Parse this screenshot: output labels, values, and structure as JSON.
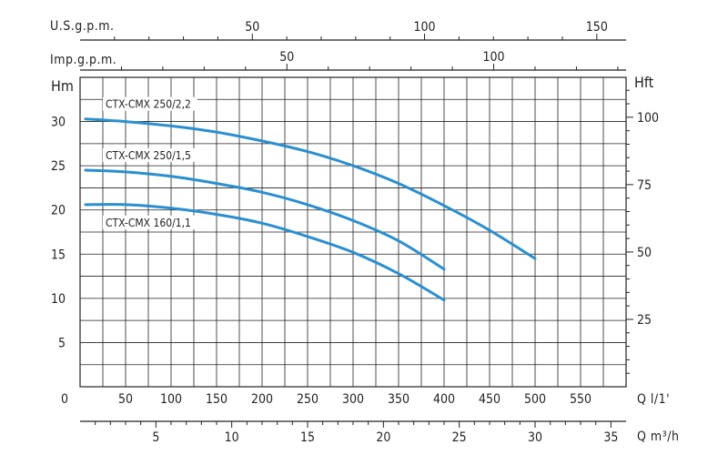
{
  "chart_data": {
    "type": "line",
    "title": "",
    "units": {
      "us_gpm": "U.S.g.p.m.",
      "imp_gpm": "Imp.g.p.m.",
      "head_m": "Hm",
      "head_ft": "Hft",
      "flow_lmin": "Q l/1'",
      "flow_m3h": "Q m³/h"
    },
    "axes": {
      "flow_lmin": {
        "range": [
          0,
          600
        ],
        "ticks": [
          50,
          100,
          150,
          200,
          250,
          300,
          350,
          400,
          450,
          500,
          550
        ]
      },
      "flow_m3h": {
        "range": [
          0,
          36
        ],
        "ticks": [
          5,
          10,
          15,
          20,
          25,
          30,
          35
        ]
      },
      "us_gpm": {
        "range": [
          0,
          158.5
        ],
        "ticks": [
          50,
          100,
          150
        ]
      },
      "imp_gpm": {
        "range": [
          0,
          132
        ],
        "ticks": [
          50,
          100
        ]
      },
      "head_m": {
        "range": [
          0,
          35
        ],
        "ticks": [
          5,
          10,
          15,
          20,
          25,
          30
        ],
        "zero_label": "0"
      },
      "head_ft": {
        "range": [
          0,
          114.8
        ],
        "ticks": [
          25,
          50,
          75,
          100
        ]
      }
    },
    "grid": true,
    "series": [
      {
        "name": "CTX-CMX 250/2,2",
        "x": [
          0,
          50,
          100,
          150,
          200,
          250,
          300,
          350,
          400,
          450,
          500
        ],
        "y": [
          30.3,
          30.0,
          29.5,
          28.8,
          27.8,
          26.6,
          25.0,
          23.0,
          20.5,
          17.7,
          14.5
        ]
      },
      {
        "name": "CTX-CMX 250/1,5",
        "x": [
          0,
          50,
          100,
          150,
          200,
          250,
          300,
          350,
          400
        ],
        "y": [
          24.5,
          24.3,
          23.8,
          23.0,
          22.0,
          20.6,
          18.8,
          16.5,
          13.3
        ]
      },
      {
        "name": "CTX-CMX 160/1,1",
        "x": [
          0,
          50,
          100,
          150,
          200,
          250,
          300,
          350,
          400
        ],
        "y": [
          20.6,
          20.6,
          20.2,
          19.5,
          18.5,
          17.0,
          15.2,
          12.8,
          9.8
        ]
      }
    ],
    "colors": {
      "curve": "#2a8fd0",
      "grid": "#222222",
      "axis": "#222222"
    }
  }
}
